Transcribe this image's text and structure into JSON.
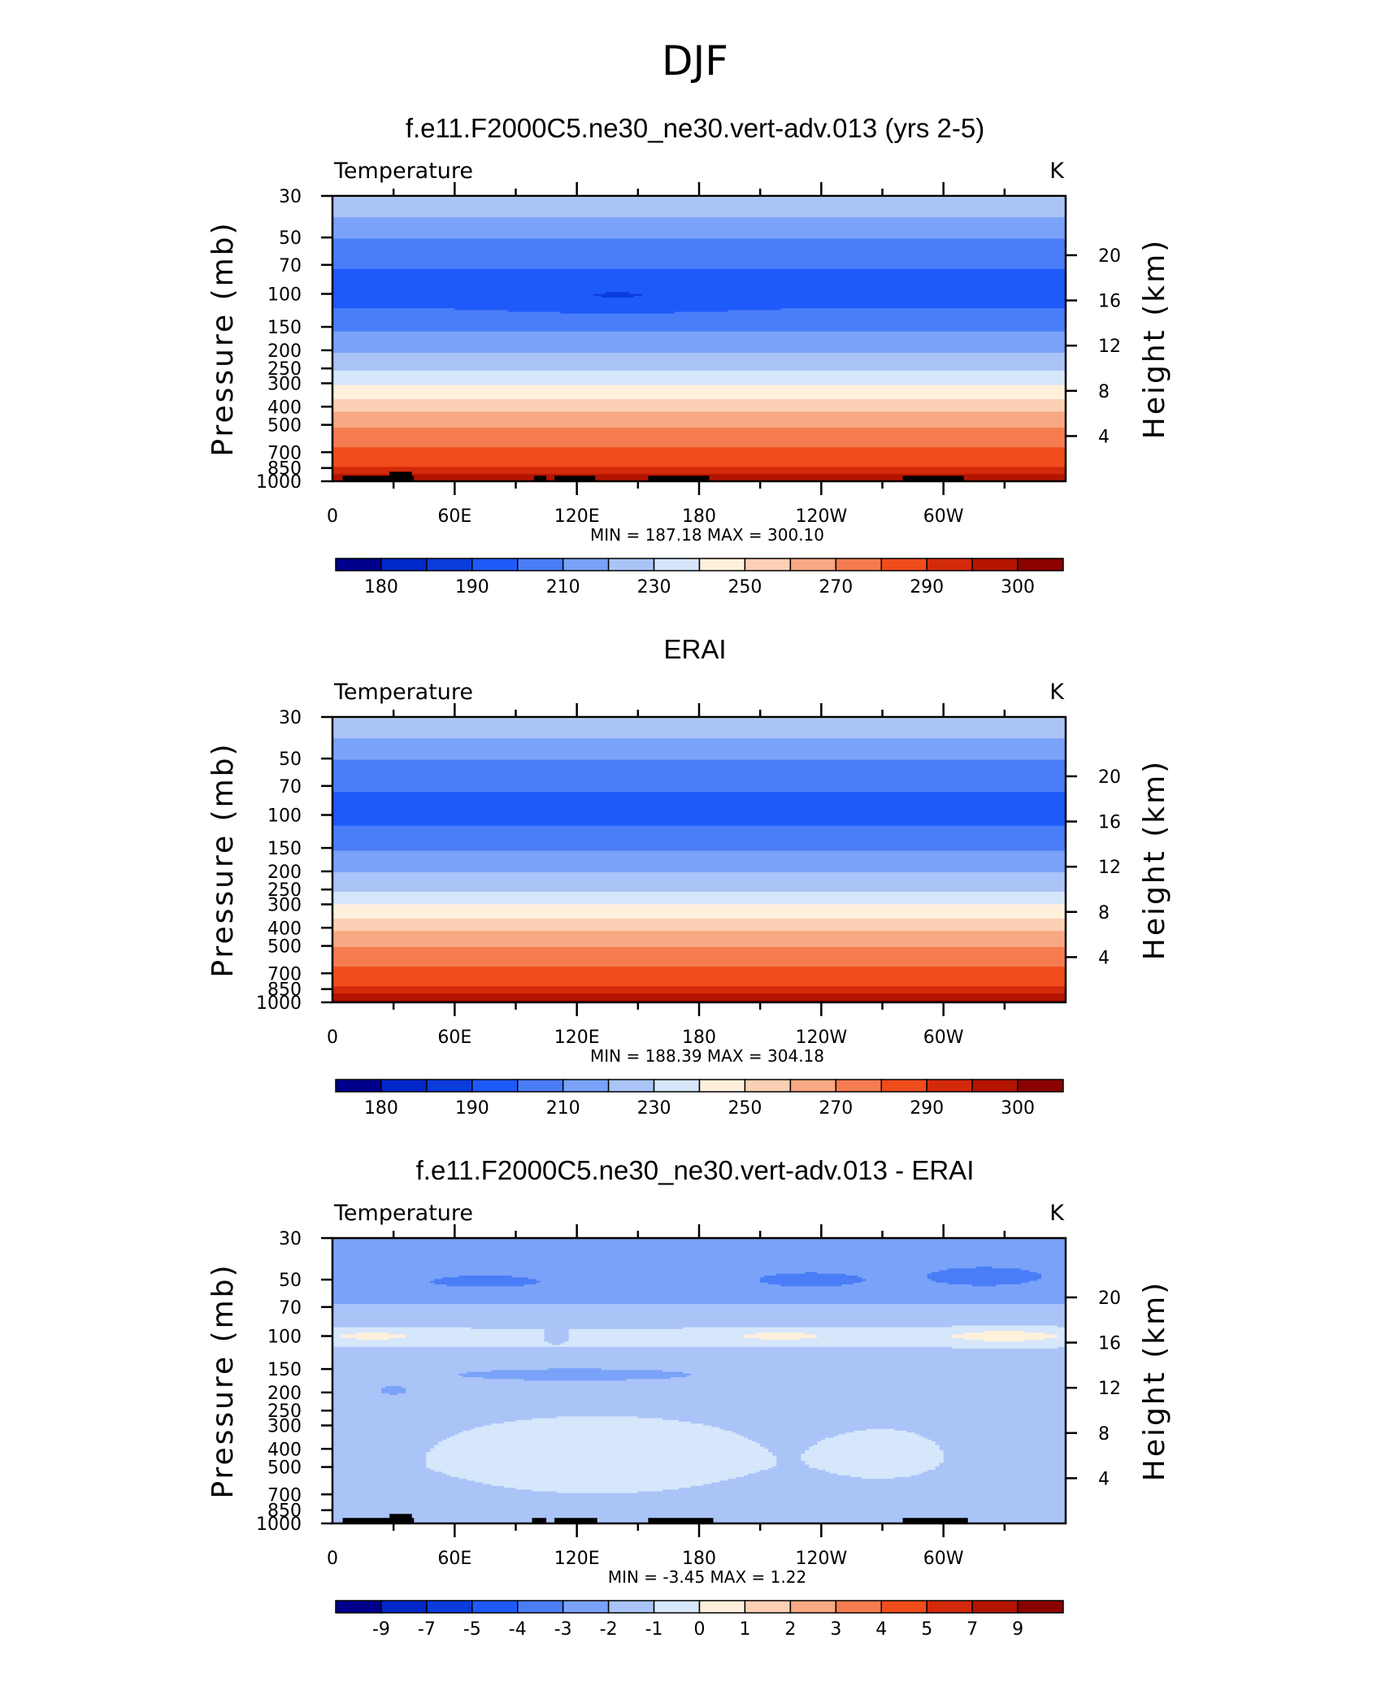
{
  "figure_title": "DJF",
  "colors": {
    "palette": [
      "#00008c",
      "#0028c8",
      "#0a3cdc",
      "#1e5afa",
      "#4a7df8",
      "#7aa2f8",
      "#aac4f8",
      "#d6e6fb",
      "#fff0dc",
      "#fcd0b4",
      "#f8a882",
      "#f57c50",
      "#f04c1c",
      "#d22a0a",
      "#b41400",
      "#8c0000"
    ],
    "topography": "#000000"
  },
  "chart_data": [
    {
      "type": "contour",
      "title": "f.e11.F2000C5.ne30_ne30.vert-adv.013 (yrs 2-5)",
      "variable": "Temperature",
      "units": "K",
      "ylabel": "Pressure (mb)",
      "ylabel_right": "Height (km)",
      "stats": "MIN = 187.18   MAX = 300.10",
      "x_ticks": [
        "0",
        "60E",
        "120E",
        "180",
        "120W",
        "60W"
      ],
      "x_tick_values": [
        0,
        60,
        120,
        180,
        240,
        300
      ],
      "xlim": [
        0,
        360
      ],
      "y_ticks": [
        "30",
        "50",
        "70",
        "100",
        "150",
        "200",
        "250",
        "300",
        "400",
        "500",
        "700",
        "850",
        "1000"
      ],
      "y_tick_values": [
        30,
        50,
        70,
        100,
        150,
        200,
        250,
        300,
        400,
        500,
        700,
        850,
        1000
      ],
      "ylim": [
        1000,
        30
      ],
      "height_ticks": [
        "4",
        "8",
        "12",
        "16",
        "20"
      ],
      "height_tick_values": [
        4,
        8,
        12,
        16,
        20
      ],
      "levels": [
        180,
        185,
        190,
        200,
        210,
        220,
        230,
        240,
        250,
        260,
        270,
        280,
        290,
        295,
        300
      ],
      "colorbar_labels": [
        "180",
        "190",
        "210",
        "230",
        "250",
        "270",
        "290",
        "300"
      ],
      "colorbar_label_boundaries": [
        1,
        3,
        5,
        7,
        9,
        11,
        13,
        15
      ],
      "profile": [
        {
          "p": 30,
          "t": 231
        },
        {
          "p": 40,
          "t": 219
        },
        {
          "p": 55,
          "t": 207
        },
        {
          "p": 70,
          "t": 201
        },
        {
          "p": 85,
          "t": 197
        },
        {
          "p": 100,
          "t": 196
        },
        {
          "p": 125,
          "t": 201
        },
        {
          "p": 150,
          "t": 208
        },
        {
          "p": 175,
          "t": 214
        },
        {
          "p": 200,
          "t": 219
        },
        {
          "p": 225,
          "t": 223
        },
        {
          "p": 250,
          "t": 228
        },
        {
          "p": 275,
          "t": 233
        },
        {
          "p": 300,
          "t": 239
        },
        {
          "p": 350,
          "t": 248
        },
        {
          "p": 400,
          "t": 256
        },
        {
          "p": 450,
          "t": 263
        },
        {
          "p": 500,
          "t": 268
        },
        {
          "p": 600,
          "t": 276
        },
        {
          "p": 700,
          "t": 282
        },
        {
          "p": 800,
          "t": 288
        },
        {
          "p": 850,
          "t": 291
        },
        {
          "p": 925,
          "t": 296
        },
        {
          "p": 1000,
          "t": 300
        }
      ],
      "features": [
        {
          "lon": 140,
          "p": 105,
          "amp": -7,
          "sx": 48,
          "sp": 0.16,
          "max_p": 200
        }
      ],
      "topography": [
        {
          "lon0": 5,
          "lon1": 40,
          "p_top": 935
        },
        {
          "lon0": 28,
          "lon1": 39,
          "p_top": 890
        },
        {
          "lon0": 99,
          "lon1": 105,
          "p_top": 935
        },
        {
          "lon0": 109,
          "lon1": 129,
          "p_top": 935
        },
        {
          "lon0": 155,
          "lon1": 185,
          "p_top": 935
        },
        {
          "lon0": 280,
          "lon1": 310,
          "p_top": 935
        }
      ]
    },
    {
      "type": "contour",
      "title": "ERAI",
      "variable": "Temperature",
      "units": "K",
      "ylabel": "Pressure (mb)",
      "ylabel_right": "Height (km)",
      "stats": "MIN = 188.39   MAX = 304.18",
      "x_ticks": [
        "0",
        "60E",
        "120E",
        "180",
        "120W",
        "60W"
      ],
      "x_tick_values": [
        0,
        60,
        120,
        180,
        240,
        300
      ],
      "xlim": [
        0,
        360
      ],
      "y_ticks": [
        "30",
        "50",
        "70",
        "100",
        "150",
        "200",
        "250",
        "300",
        "400",
        "500",
        "700",
        "850",
        "1000"
      ],
      "y_tick_values": [
        30,
        50,
        70,
        100,
        150,
        200,
        250,
        300,
        400,
        500,
        700,
        850,
        1000
      ],
      "ylim": [
        1000,
        30
      ],
      "height_ticks": [
        "4",
        "8",
        "12",
        "16",
        "20"
      ],
      "height_tick_values": [
        4,
        8,
        12,
        16,
        20
      ],
      "levels": [
        180,
        185,
        190,
        200,
        210,
        220,
        230,
        240,
        250,
        260,
        270,
        280,
        290,
        295,
        300
      ],
      "colorbar_labels": [
        "180",
        "190",
        "210",
        "230",
        "250",
        "270",
        "290",
        "300"
      ],
      "colorbar_label_boundaries": [
        1,
        3,
        5,
        7,
        9,
        11,
        13,
        15
      ],
      "profile": [
        {
          "p": 30,
          "t": 231
        },
        {
          "p": 40,
          "t": 219
        },
        {
          "p": 55,
          "t": 207
        },
        {
          "p": 70,
          "t": 201
        },
        {
          "p": 85,
          "t": 198
        },
        {
          "p": 100,
          "t": 197
        },
        {
          "p": 125,
          "t": 202
        },
        {
          "p": 150,
          "t": 209
        },
        {
          "p": 175,
          "t": 215
        },
        {
          "p": 200,
          "t": 220
        },
        {
          "p": 225,
          "t": 224
        },
        {
          "p": 250,
          "t": 229
        },
        {
          "p": 275,
          "t": 234
        },
        {
          "p": 300,
          "t": 240
        },
        {
          "p": 350,
          "t": 249
        },
        {
          "p": 400,
          "t": 257
        },
        {
          "p": 450,
          "t": 264
        },
        {
          "p": 500,
          "t": 269
        },
        {
          "p": 600,
          "t": 277
        },
        {
          "p": 700,
          "t": 283
        },
        {
          "p": 800,
          "t": 289
        },
        {
          "p": 850,
          "t": 292
        },
        {
          "p": 925,
          "t": 297
        },
        {
          "p": 1000,
          "t": 302
        }
      ],
      "features": [
        {
          "lon": 160,
          "p": 100,
          "amp": -7,
          "sx": 38,
          "sp": 0.06,
          "max_p": 200
        }
      ],
      "topography": []
    },
    {
      "type": "contour",
      "title": "f.e11.F2000C5.ne30_ne30.vert-adv.013 - ERAI",
      "variable": "Temperature",
      "units": "K",
      "ylabel": "Pressure (mb)",
      "ylabel_right": "Height (km)",
      "stats": "MIN =    -3.45   MAX =     1.22",
      "x_ticks": [
        "0",
        "60E",
        "120E",
        "180",
        "120W",
        "60W"
      ],
      "x_tick_values": [
        0,
        60,
        120,
        180,
        240,
        300
      ],
      "xlim": [
        0,
        360
      ],
      "y_ticks": [
        "30",
        "50",
        "70",
        "100",
        "150",
        "200",
        "250",
        "300",
        "400",
        "500",
        "700",
        "850",
        "1000"
      ],
      "y_tick_values": [
        30,
        50,
        70,
        100,
        150,
        200,
        250,
        300,
        400,
        500,
        700,
        850,
        1000
      ],
      "ylim": [
        1000,
        30
      ],
      "height_ticks": [
        "4",
        "8",
        "12",
        "16",
        "20"
      ],
      "height_tick_values": [
        4,
        8,
        12,
        16,
        20
      ],
      "levels": [
        -9,
        -7,
        -5,
        -4,
        -3,
        -2,
        -1,
        0,
        1,
        2,
        3,
        4,
        5,
        7,
        9
      ],
      "colorbar_labels": [
        "-9",
        "-7",
        "-5",
        "-4",
        "-3",
        "-2",
        "-1",
        "0",
        "1",
        "2",
        "3",
        "4",
        "5",
        "7",
        "9"
      ],
      "colorbar_label_boundaries": [
        1,
        2,
        3,
        4,
        5,
        6,
        7,
        8,
        9,
        10,
        11,
        12,
        13,
        14,
        15
      ],
      "profile": [
        {
          "p": 30,
          "t": -2.3
        },
        {
          "p": 60,
          "t": -2.4
        },
        {
          "p": 75,
          "t": -1.6
        },
        {
          "p": 100,
          "t": -0.7
        },
        {
          "p": 130,
          "t": -1.3
        },
        {
          "p": 200,
          "t": -1.5
        },
        {
          "p": 300,
          "t": -1.3
        },
        {
          "p": 500,
          "t": -1.2
        },
        {
          "p": 700,
          "t": -1.3
        },
        {
          "p": 850,
          "t": -1.5
        },
        {
          "p": 1000,
          "t": -1.5
        }
      ],
      "features": [
        {
          "lon": 75,
          "p": 51,
          "amp": -1.0,
          "sx": 38,
          "sp": 0.1
        },
        {
          "lon": 235,
          "p": 50,
          "amp": -1.3,
          "sx": 30,
          "sp": 0.1
        },
        {
          "lon": 320,
          "p": 48,
          "amp": -1.5,
          "sx": 30,
          "sp": 0.12
        },
        {
          "lon": 20,
          "p": 100,
          "amp": 1.1,
          "sx": 25,
          "sp": 0.07
        },
        {
          "lon": 220,
          "p": 100,
          "amp": 1.2,
          "sx": 25,
          "sp": 0.07
        },
        {
          "lon": 330,
          "p": 100,
          "amp": 1.5,
          "sx": 30,
          "sp": 0.08
        },
        {
          "lon": 110,
          "p": 100,
          "amp": -1.3,
          "sx": 5,
          "sp": 0.06
        },
        {
          "lon": 130,
          "p": 420,
          "amp": 0.8,
          "sx": 75,
          "sp": 0.5
        },
        {
          "lon": 270,
          "p": 420,
          "amp": 0.7,
          "sx": 28,
          "sp": 0.3
        },
        {
          "lon": 120,
          "p": 160,
          "amp": -0.8,
          "sx": 110,
          "sp": 0.14
        },
        {
          "lon": 30,
          "p": 195,
          "amp": -1.0,
          "sx": 7,
          "sp": 0.06
        }
      ],
      "topography": [
        {
          "lon0": 5,
          "lon1": 40,
          "p_top": 935
        },
        {
          "lon0": 28,
          "lon1": 39,
          "p_top": 890
        },
        {
          "lon0": 98,
          "lon1": 105,
          "p_top": 935
        },
        {
          "lon0": 109,
          "lon1": 130,
          "p_top": 935
        },
        {
          "lon0": 155,
          "lon1": 187,
          "p_top": 935
        },
        {
          "lon0": 280,
          "lon1": 312,
          "p_top": 935
        }
      ]
    }
  ]
}
